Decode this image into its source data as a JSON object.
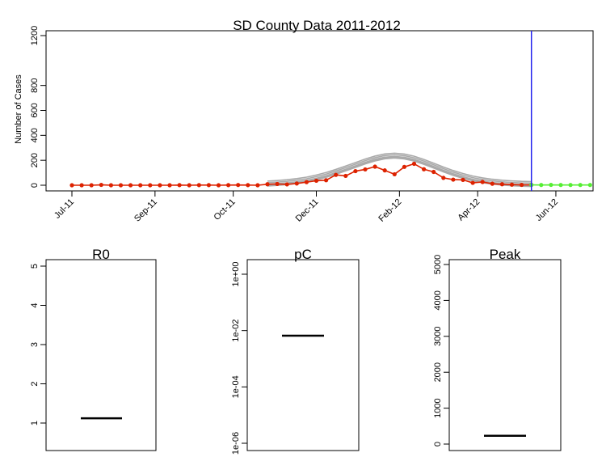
{
  "chart_data": [
    {
      "type": "line",
      "title": "SD County Data 2011-2012",
      "xlabel": "",
      "ylabel": "Number of Cases",
      "ylim": [
        0,
        1250
      ],
      "y_ticks": [
        0,
        200,
        400,
        600,
        800,
        1200
      ],
      "x_ticks": [
        "Jul-11",
        "Sep-11",
        "Oct-11",
        "Dec-11",
        "Feb-12",
        "Apr-12",
        "Jun-12"
      ],
      "x_tick_weeks": [
        0,
        8.5,
        16.5,
        25,
        33.5,
        41.5,
        49.5
      ],
      "forecast_start_week": 47,
      "colors": {
        "observed": "#dd2200",
        "future": "#55ee33",
        "fit": "#aaaaaa",
        "forecast_line": "#2222ee"
      },
      "series": [
        {
          "role": "observed",
          "x": [
            0,
            1,
            2,
            3,
            4,
            5,
            6,
            7,
            8,
            9,
            10,
            11,
            12,
            13,
            14,
            15,
            16,
            17,
            18,
            19,
            20,
            21,
            22,
            23,
            24,
            25,
            26,
            27,
            28,
            29,
            30,
            31,
            32,
            33,
            34,
            35,
            36,
            37,
            38,
            39,
            40,
            41,
            42,
            43,
            44,
            45,
            46,
            47
          ],
          "values": [
            0,
            0,
            0,
            3,
            0,
            0,
            0,
            0,
            0,
            0,
            0,
            1,
            0,
            1,
            1,
            0,
            1,
            2,
            1,
            0,
            8,
            10,
            7,
            14,
            25,
            36,
            40,
            83,
            75,
            113,
            127,
            149,
            119,
            88,
            147,
            172,
            128,
            107,
            59,
            45,
            43,
            19,
            26,
            12,
            8,
            5,
            3,
            3
          ]
        },
        {
          "role": "future",
          "x": [
            47,
            48,
            49,
            50,
            51,
            52,
            53
          ],
          "values": [
            3,
            2,
            3,
            2,
            2,
            2,
            2
          ]
        },
        {
          "role": "fit",
          "x": [
            20,
            21,
            22,
            23,
            24,
            25,
            26,
            27,
            28,
            29,
            30,
            31,
            32,
            33,
            34,
            35,
            36,
            37,
            38,
            39,
            40,
            41,
            42,
            43,
            44,
            45,
            46,
            47
          ],
          "values": [
            7,
            12,
            18,
            27,
            39,
            56,
            76,
            101,
            128,
            156,
            184,
            208,
            225,
            231,
            224,
            207,
            181,
            151,
            120,
            92,
            68,
            48,
            33,
            22,
            14,
            9,
            5,
            3
          ]
        }
      ]
    },
    {
      "type": "boxplot",
      "title": "R0",
      "ylim": [
        0.3,
        5.2
      ],
      "y_ticks": [
        1,
        2,
        3,
        4,
        5
      ],
      "y_tick_labels": [
        "1",
        "2",
        "3",
        "4",
        "5"
      ],
      "median": 1.12
    },
    {
      "type": "boxplot",
      "title": "pC",
      "log_scale": true,
      "ylim_log10": [
        -6,
        0.2
      ],
      "y_ticks_log10": [
        0,
        -2,
        -4,
        -6
      ],
      "y_tick_labels": [
        "1e+00",
        "1e-02",
        "1e-04",
        "1e-06"
      ],
      "median": 0.0066
    },
    {
      "type": "boxplot",
      "title": "Peak",
      "ylim": [
        -100,
        5200
      ],
      "y_ticks": [
        0,
        1000,
        2000,
        3000,
        4000,
        5000
      ],
      "y_tick_labels": [
        "0",
        "1000",
        "2000",
        "3000",
        "4000",
        "5000"
      ],
      "median": 230
    }
  ]
}
